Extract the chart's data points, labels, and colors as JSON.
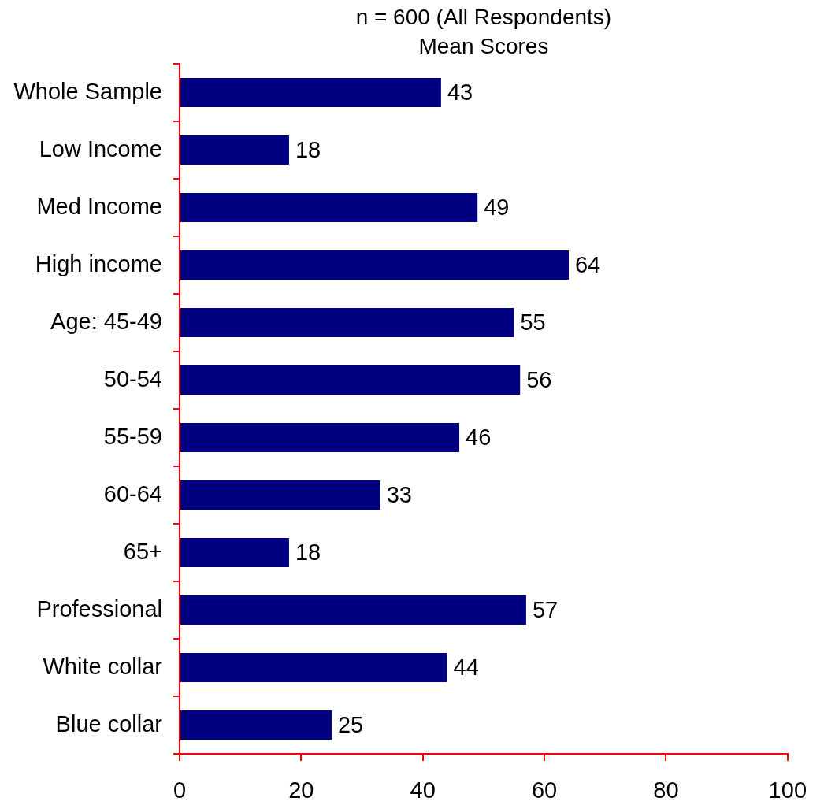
{
  "chart_data": {
    "type": "bar",
    "orientation": "horizontal",
    "title": "n = 600 (All Respondents)",
    "subtitle": "Mean Scores",
    "categories": [
      "Whole Sample",
      "Low Income",
      "Med Income",
      "High income",
      "Age: 45-49",
      "50-54",
      "55-59",
      "60-64",
      "65+",
      "Professional",
      "White collar",
      "Blue collar"
    ],
    "values": [
      43,
      18,
      49,
      64,
      55,
      56,
      46,
      33,
      18,
      57,
      44,
      25
    ],
    "color": "#000080",
    "xlim": [
      0,
      100
    ],
    "xticks": [
      0,
      20,
      40,
      60,
      80,
      100
    ],
    "data_labels": true
  }
}
